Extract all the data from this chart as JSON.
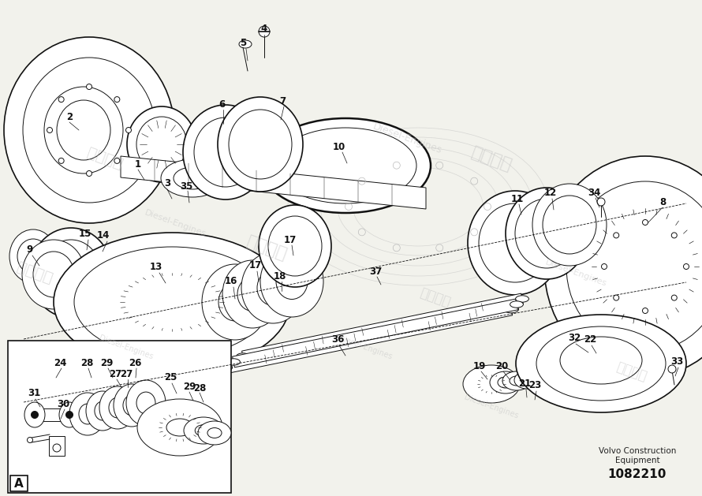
{
  "bg_color": "#f2f2ec",
  "line_color": "#111111",
  "part_number_text": "1082210",
  "manufacturer_line1": "Volvo Construction",
  "manufacturer_line2": "Equipment",
  "fig_width": 8.9,
  "fig_height": 6.29,
  "dpi": 100
}
